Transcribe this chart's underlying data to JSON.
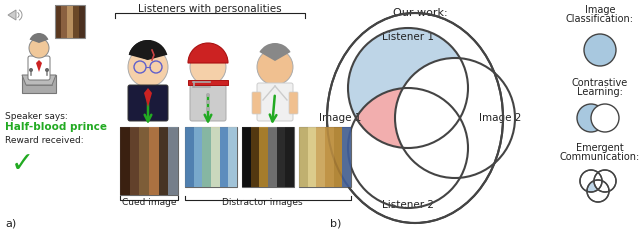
{
  "title_b": "Our work:",
  "listener1_label": "Listener 1",
  "listener2_label": "Listener 2",
  "image1_label": "Image 1",
  "image2_label": "Image 2",
  "panel_a": "a)",
  "panel_b": "b)",
  "blue_fill": "#a8c8df",
  "pink_fill": "#f0a0a0",
  "circle_edge": "#444444",
  "bg_color": "#ffffff",
  "green_color": "#22aa22",
  "text_color": "#222222",
  "speaker_label": "Speaker says:",
  "phrase_label": "Half-blood prince",
  "reward_label": "Reward received:",
  "cued_label": "Cued image",
  "distractor_label": "Distractor images",
  "listeners_label": "Listeners with personalities",
  "img_class_line1": "Image",
  "img_class_line2": "Classification:",
  "contrastive_line1": "Contrastive",
  "contrastive_line2": "Learning:",
  "emergent_line1": "Emergent",
  "emergent_line2": "Communication:"
}
